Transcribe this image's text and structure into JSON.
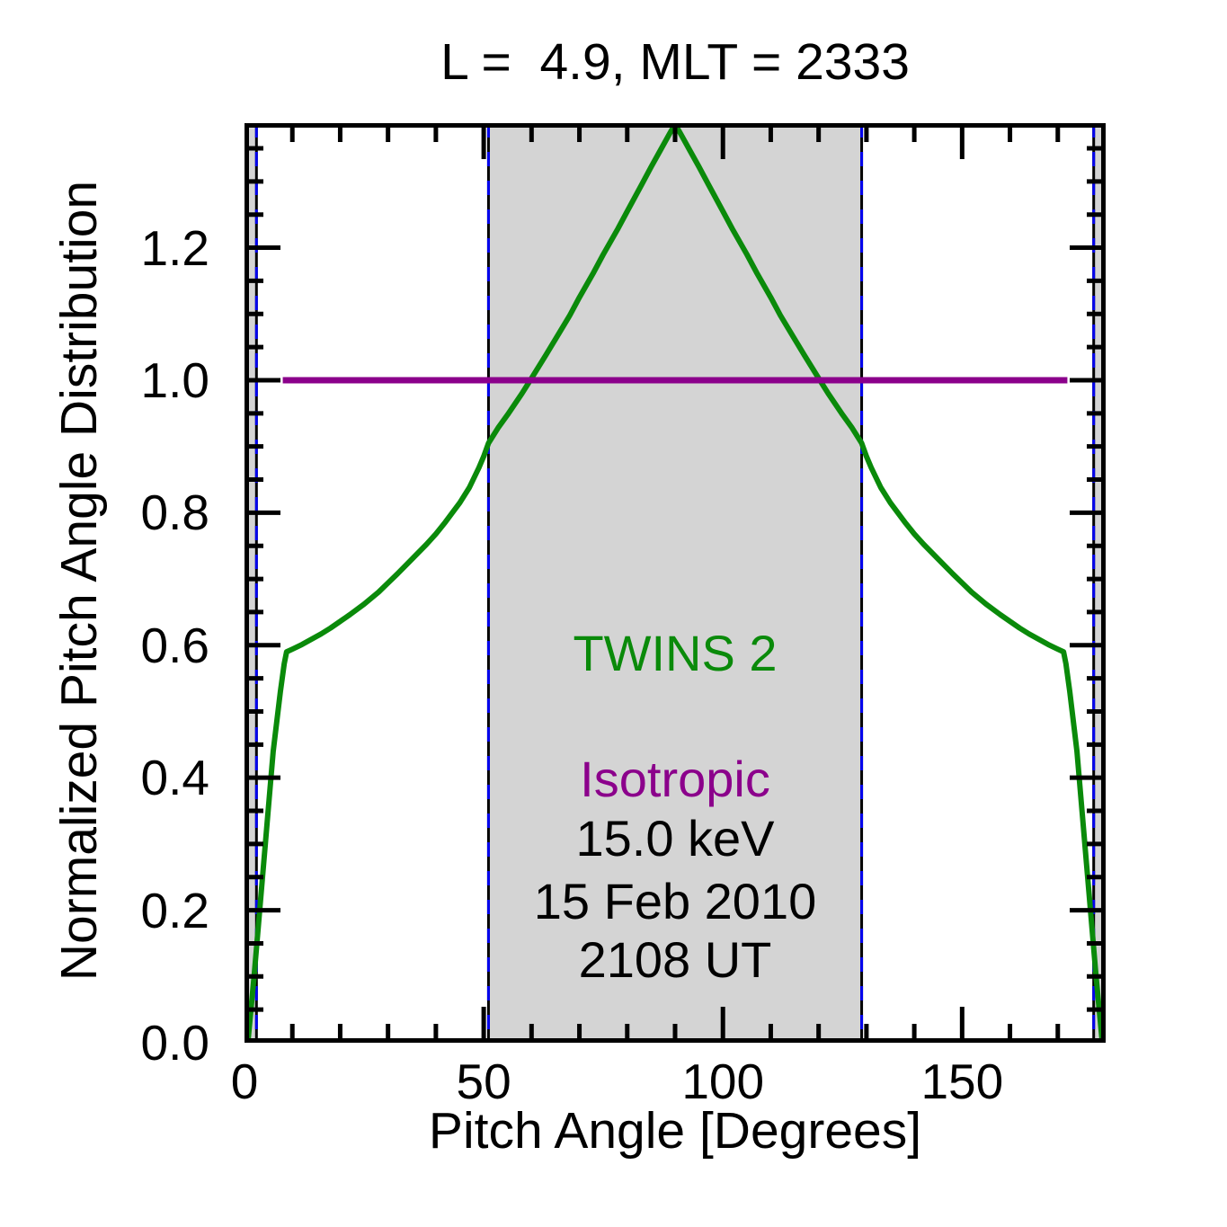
{
  "chart_data": {
    "type": "line",
    "title": "L =  4.9, MLT = 2333",
    "xlabel": "Pitch Angle [Degrees]",
    "ylabel": "Normalized Pitch Angle Distribution",
    "xlim": [
      0,
      180
    ],
    "ylim": [
      0,
      1.388
    ],
    "grid": false,
    "x_major_ticks": [
      0,
      50,
      100,
      150
    ],
    "x_tick_labels": [
      "0",
      "50",
      "100",
      "150"
    ],
    "x_minor_step": 10,
    "y_major_ticks": [
      0.0,
      0.2,
      0.4,
      0.6,
      0.8,
      1.0,
      1.2
    ],
    "y_tick_labels": [
      "0.0",
      "0.2",
      "0.4",
      "0.6",
      "0.8",
      "1.0",
      "1.2"
    ],
    "y_minor_step": 0.05,
    "shaded_regions": {
      "color": "#d4d4d4",
      "ranges": [
        [
          0,
          2.5
        ],
        [
          51,
          129
        ],
        [
          177.5,
          180
        ]
      ]
    },
    "region_boundary_lines": {
      "x": [
        2.5,
        51,
        129,
        177.5
      ],
      "style": "dashed",
      "dash_color": "#0000ee",
      "base_color": "#000000"
    },
    "series": [
      {
        "name": "TWINS 2",
        "color": "#0a8a0a",
        "points": [
          [
            0.7,
            0
          ],
          [
            2,
            0.1
          ],
          [
            4,
            0.27
          ],
          [
            6,
            0.44
          ],
          [
            7.5,
            0.53
          ],
          [
            8.3,
            0.572
          ],
          [
            8.8,
            0.59
          ],
          [
            10,
            0.594
          ],
          [
            12,
            0.601
          ],
          [
            14,
            0.609
          ],
          [
            16,
            0.617
          ],
          [
            18,
            0.626
          ],
          [
            20,
            0.636
          ],
          [
            22,
            0.646
          ],
          [
            25,
            0.662
          ],
          [
            28,
            0.68
          ],
          [
            30,
            0.694
          ],
          [
            32,
            0.708
          ],
          [
            35,
            0.73
          ],
          [
            38,
            0.752
          ],
          [
            40,
            0.768
          ],
          [
            42,
            0.786
          ],
          [
            45,
            0.815
          ],
          [
            47,
            0.838
          ],
          [
            49,
            0.868
          ],
          [
            50,
            0.885
          ],
          [
            51,
            0.905
          ],
          [
            53,
            0.928
          ],
          [
            55,
            0.948
          ],
          [
            58,
            0.98
          ],
          [
            60,
            1.003
          ],
          [
            63,
            1.038
          ],
          [
            65,
            1.062
          ],
          [
            68,
            1.098
          ],
          [
            70,
            1.125
          ],
          [
            73,
            1.163
          ],
          [
            75,
            1.19
          ],
          [
            78,
            1.228
          ],
          [
            80,
            1.255
          ],
          [
            83,
            1.295
          ],
          [
            85,
            1.322
          ],
          [
            87,
            1.348
          ],
          [
            89,
            1.374
          ],
          [
            90,
            1.386
          ],
          [
            91,
            1.374
          ],
          [
            93,
            1.348
          ],
          [
            95,
            1.322
          ],
          [
            97,
            1.295
          ],
          [
            100,
            1.255
          ],
          [
            102,
            1.228
          ],
          [
            105,
            1.19
          ],
          [
            107,
            1.163
          ],
          [
            110,
            1.125
          ],
          [
            112,
            1.098
          ],
          [
            115,
            1.062
          ],
          [
            117,
            1.038
          ],
          [
            120,
            1.003
          ],
          [
            122,
            0.98
          ],
          [
            125,
            0.948
          ],
          [
            127,
            0.928
          ],
          [
            129,
            0.905
          ],
          [
            130,
            0.885
          ],
          [
            131,
            0.868
          ],
          [
            133,
            0.838
          ],
          [
            135,
            0.815
          ],
          [
            138,
            0.786
          ],
          [
            140,
            0.768
          ],
          [
            142,
            0.752
          ],
          [
            145,
            0.73
          ],
          [
            148,
            0.708
          ],
          [
            150,
            0.694
          ],
          [
            152,
            0.68
          ],
          [
            155,
            0.662
          ],
          [
            158,
            0.646
          ],
          [
            160,
            0.636
          ],
          [
            162,
            0.626
          ],
          [
            164,
            0.617
          ],
          [
            166,
            0.609
          ],
          [
            168,
            0.601
          ],
          [
            170,
            0.594
          ],
          [
            171.2,
            0.59
          ],
          [
            171.7,
            0.572
          ],
          [
            172.5,
            0.53
          ],
          [
            174,
            0.44
          ],
          [
            176,
            0.27
          ],
          [
            178,
            0.1
          ],
          [
            179.3,
            0
          ]
        ]
      },
      {
        "name": "Isotropic",
        "color": "#8b008b",
        "points": [
          [
            8,
            1.0
          ],
          [
            172,
            1.0
          ]
        ]
      }
    ],
    "annotations": [
      {
        "text": "TWINS 2",
        "color": "#0a8a0a",
        "x": 90,
        "y": 0.587
      },
      {
        "text": "Isotropic",
        "color": "#8b008b",
        "x": 90,
        "y": 0.398
      },
      {
        "text": "15.0 keV",
        "color": "#000000",
        "x": 90,
        "y": 0.308
      },
      {
        "text": "15 Feb 2010",
        "color": "#000000",
        "x": 90,
        "y": 0.213
      },
      {
        "text": "2108 UT",
        "color": "#000000",
        "x": 90,
        "y": 0.125
      }
    ]
  }
}
